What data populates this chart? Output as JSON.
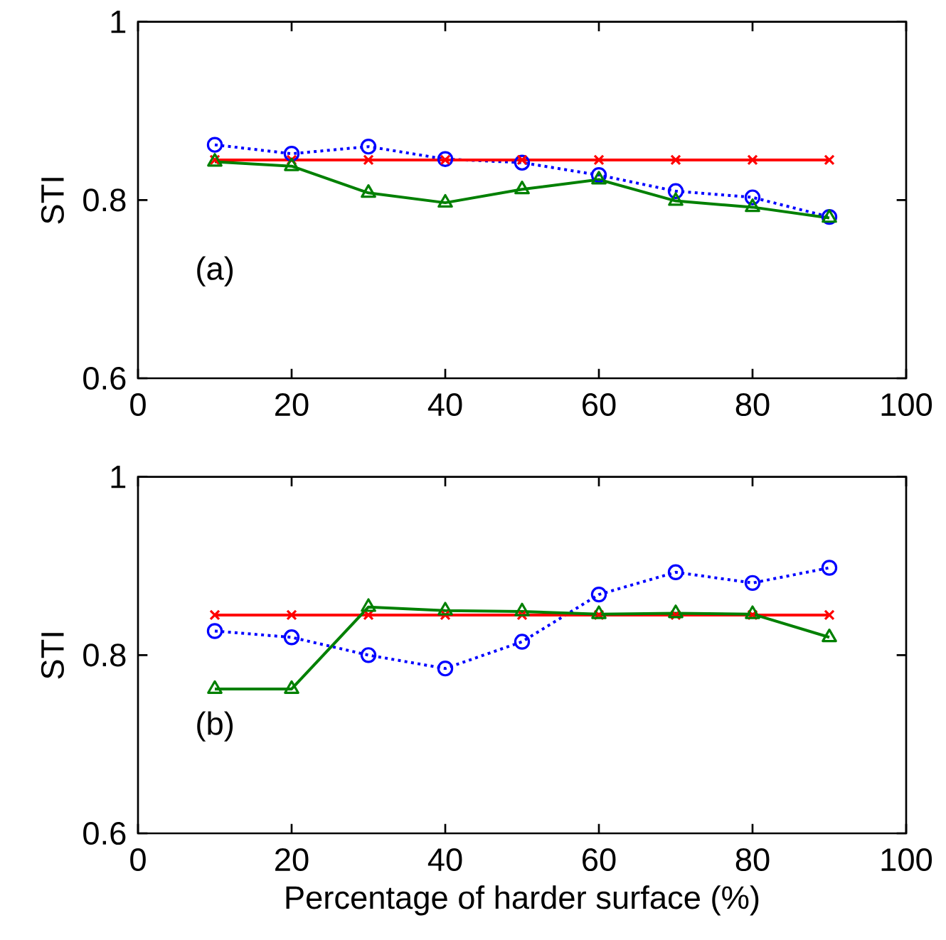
{
  "chart_data": [
    {
      "type": "line",
      "ylabel": "STI",
      "annotations": [
        "(a)"
      ],
      "xlim": [
        0,
        100
      ],
      "xticks": [
        0,
        20,
        40,
        60,
        80,
        100
      ],
      "ylim": [
        0.6,
        1
      ],
      "yticks": [
        0.6,
        0.8,
        1
      ],
      "x": [
        10,
        20,
        30,
        40,
        50,
        60,
        70,
        80,
        90
      ],
      "series": [
        {
          "color": "#0000ff",
          "marker": "circle",
          "line_style": "dotted",
          "values": [
            0.862,
            0.852,
            0.86,
            0.846,
            0.842,
            0.828,
            0.81,
            0.803,
            0.781
          ]
        },
        {
          "color": "#ff0000",
          "marker": "cross",
          "line_style": "solid",
          "values": [
            0.845,
            0.845,
            0.845,
            0.845,
            0.845,
            0.845,
            0.845,
            0.845,
            0.845
          ]
        },
        {
          "color": "#008000",
          "marker": "triangle",
          "line_style": "solid",
          "values": [
            0.843,
            0.838,
            0.808,
            0.797,
            0.812,
            0.823,
            0.799,
            0.792,
            0.78
          ]
        }
      ]
    },
    {
      "type": "line",
      "ylabel": "STI",
      "xlabel": "Percentage of harder surface (%)",
      "annotations": [
        "(b)"
      ],
      "xlim": [
        0,
        100
      ],
      "xticks": [
        0,
        20,
        40,
        60,
        80,
        100
      ],
      "ylim": [
        0.6,
        1
      ],
      "yticks": [
        0.6,
        0.8,
        1
      ],
      "x": [
        10,
        20,
        30,
        40,
        50,
        60,
        70,
        80,
        90
      ],
      "series": [
        {
          "color": "#0000ff",
          "marker": "circle",
          "line_style": "dotted",
          "values": [
            0.827,
            0.82,
            0.8,
            0.785,
            0.815,
            0.868,
            0.893,
            0.881,
            0.898
          ]
        },
        {
          "color": "#ff0000",
          "marker": "cross",
          "line_style": "solid",
          "values": [
            0.845,
            0.845,
            0.845,
            0.845,
            0.845,
            0.845,
            0.845,
            0.845,
            0.845
          ]
        },
        {
          "color": "#008000",
          "marker": "triangle",
          "line_style": "solid",
          "values": [
            0.762,
            0.762,
            0.854,
            0.85,
            0.849,
            0.846,
            0.847,
            0.846,
            0.82
          ]
        }
      ]
    }
  ]
}
